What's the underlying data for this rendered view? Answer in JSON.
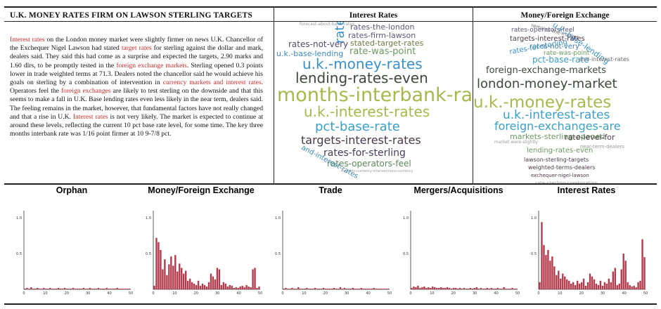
{
  "article": {
    "title": "U.K. MONEY RATES FIRM ON LAWSON STERLING TARGETS",
    "segments": [
      {
        "text": "Interest rates",
        "hl": true
      },
      {
        "text": " on the London money market were slightly firmer on news U.K. Chancellor of the Exchequer Nigel Lawson had stated ",
        "hl": false
      },
      {
        "text": "target rates",
        "hl": true
      },
      {
        "text": " for sterling against the dollar and mark, dealers said. They said this had come as a surprise and expected the targets, 2.90 marks and 1.60 dlrs, to be promptly tested in the ",
        "hl": false
      },
      {
        "text": "foreign exchange markets",
        "hl": true
      },
      {
        "text": ". Sterling opened 0.3 points lower in trade weighted terms at 71.3. Dealers noted the chancellor said he would achieve his goals on sterling by a combination of intervention in ",
        "hl": false
      },
      {
        "text": "currency markets and interest rates",
        "hl": true
      },
      {
        "text": ". Operators feel the ",
        "hl": false
      },
      {
        "text": "foreign exchanges",
        "hl": true
      },
      {
        "text": " are likely to test sterling on the downside and that this seems to make a fall in U.K. Base lending rates even less likely in the near term, dealers said. The feeling remains in the market, however, that fundamental factors have not really changed and that a rise in U.K. ",
        "hl": false
      },
      {
        "text": "Interest rates",
        "hl": true
      },
      {
        "text": " is not very likely. The market is expected to continue at around these levels, reflecting the current 10 pct base rate level, for some time. The key three months interbank rate was 1/16 point firmer at 10 9-7/8 pct.",
        "hl": false
      }
    ]
  },
  "clouds": [
    {
      "title": "Interest Rates",
      "words": [
        {
          "text": "forecast-about-bank-rates",
          "c": "#9a9a9a"
        },
        {
          "text": "rates-the-london",
          "c": "#5a5a7a"
        },
        {
          "text": "rates-firm-lawson",
          "c": "#5a5a7a"
        },
        {
          "text": "stated-target-rates",
          "c": "#6a7a40"
        },
        {
          "text": "rates-not-very",
          "c": "#5a4a6a"
        },
        {
          "text": "rate-was-point",
          "c": "#6a9a60"
        },
        {
          "text": "u.k.-base-lending",
          "c": "#3a8ab8"
        },
        {
          "text": "u.k.-money-rates",
          "c": "#3a90c8"
        },
        {
          "text": "rate",
          "c": "#3a90c8"
        },
        {
          "text": "lending-rates-even",
          "c": "#3a4a3a"
        },
        {
          "text": "months-interbank-rate",
          "c": "#a8b84a"
        },
        {
          "text": "u.k.-interest-rates",
          "c": "#a8b84a"
        },
        {
          "text": "pct-base-rate",
          "c": "#3aa0c8"
        },
        {
          "text": "targets-interest-rates",
          "c": "#4a3a4a"
        },
        {
          "text": "rates-for-sterling",
          "c": "#4a3a5a"
        },
        {
          "text": "rates-operators-feel",
          "c": "#5a8a5a"
        },
        {
          "text": "and-interest-rates",
          "c": "#3a8ab8"
        },
        {
          "text": "markets-currency-interventions-currency",
          "c": "#9a9a9a"
        }
      ]
    },
    {
      "title": "Money/Foreign Exchange",
      "words": [
        {
          "text": "remains-the-market",
          "c": "#6a6a6a"
        },
        {
          "text": "rates-operators-feel",
          "c": "#5a5a7a"
        },
        {
          "text": "u.k.-base-lending",
          "c": "#3a90c8"
        },
        {
          "text": "targets-interest-rates",
          "c": "#4a3a4a"
        },
        {
          "text": "rates-not-very",
          "c": "#3a7aa8"
        },
        {
          "text": "rates-for-sterling",
          "c": "#3a90c8"
        },
        {
          "text": "rate-was-point",
          "c": "#6a9a60"
        },
        {
          "text": "pct-base-rate",
          "c": "#3aa0c8"
        },
        {
          "text": "and-interest-rates",
          "c": "#6a6a6a"
        },
        {
          "text": "foreign-exchange-markets",
          "c": "#3a4a3a"
        },
        {
          "text": "london-money-market",
          "c": "#3a4a3a"
        },
        {
          "text": "u.k.-money-rates",
          "c": "#a8b84a"
        },
        {
          "text": "u.k.-interest-rates",
          "c": "#3aa0c8"
        },
        {
          "text": "foreign-exchanges-are",
          "c": "#3aa0c8"
        },
        {
          "text": "markets-sterling-opened",
          "c": "#6a9a60"
        },
        {
          "text": "rate-level-for",
          "c": "#4a3a4a"
        },
        {
          "text": "market-were-slightly",
          "c": "#9a9a9a"
        },
        {
          "text": "near-term-dealers",
          "c": "#9a9a9a"
        },
        {
          "text": "lending-rates-even",
          "c": "#6a9a60"
        },
        {
          "text": "lawson-sterling-targets",
          "c": "#4a3a4a"
        },
        {
          "text": "weighted-terms-dealers",
          "c": "#4a3a4a"
        },
        {
          "text": "exchequer-nigel-lawson",
          "c": "#4a3a4a"
        },
        {
          "text": "rate-sterling-combination",
          "c": "#9a9a9a"
        }
      ]
    }
  ],
  "chart_data": [
    {
      "type": "bar",
      "title": "Orphan",
      "x": [
        0,
        1,
        2,
        3,
        4,
        5,
        6,
        7,
        8,
        9,
        10,
        11,
        12,
        13,
        14,
        15,
        16,
        17,
        18,
        19,
        20,
        21,
        22,
        23,
        24,
        25,
        26,
        27,
        28,
        29,
        30,
        31,
        32,
        33,
        34,
        35,
        36,
        37,
        38,
        39,
        40,
        41,
        42,
        43,
        44,
        45,
        46,
        47,
        48,
        49,
        50
      ],
      "values": [
        0.01,
        0.02,
        0.01,
        0.03,
        0.01,
        0.01,
        0.02,
        0.01,
        0.01,
        0.02,
        0.01,
        0.01,
        0.02,
        0.01,
        0.01,
        0.01,
        0.02,
        0.01,
        0.01,
        0.02,
        0.01,
        0.01,
        0.01,
        0.02,
        0.01,
        0.01,
        0.01,
        0.01,
        0.02,
        0.01,
        0.01,
        0.02,
        0.01,
        0.01,
        0.01,
        0.02,
        0.01,
        0.01,
        0.01,
        0.02,
        0.01,
        0.01,
        0.01,
        0.01,
        0.02,
        0.01,
        0.01,
        0.01,
        0.01,
        0.01,
        0.01
      ],
      "ylim": [
        0,
        1.1
      ],
      "yticks": [
        "0.5",
        "1.0"
      ],
      "xticks": [
        "0",
        "10",
        "20",
        "30",
        "40",
        "50"
      ],
      "color": "#b33a4c"
    },
    {
      "type": "bar",
      "title": "Money/Foreign Exchange",
      "x": [
        0,
        1,
        2,
        3,
        4,
        5,
        6,
        7,
        8,
        9,
        10,
        11,
        12,
        13,
        14,
        15,
        16,
        17,
        18,
        19,
        20,
        21,
        22,
        23,
        24,
        25,
        26,
        27,
        28,
        29,
        30,
        31,
        32,
        33,
        34,
        35,
        36,
        37,
        38,
        39,
        40,
        41,
        42,
        43,
        44,
        45,
        46,
        47,
        48,
        49,
        50
      ],
      "values": [
        0.05,
        0.72,
        0.66,
        0.55,
        0.28,
        0.42,
        0.2,
        0.35,
        0.46,
        0.33,
        0.48,
        0.25,
        0.36,
        0.3,
        0.22,
        0.26,
        0.12,
        0.15,
        0.1,
        0.08,
        0.06,
        0.12,
        0.05,
        0.08,
        0.06,
        0.04,
        0.1,
        0.22,
        0.18,
        0.14,
        0.3,
        0.28,
        0.06,
        0.1,
        0.08,
        0.04,
        0.06,
        0.05,
        0.02,
        0.03,
        0.02,
        0.04,
        0.05,
        0.03,
        0.06,
        0.04,
        0.03,
        0.28,
        0.3,
        0.02,
        0.04
      ],
      "ylim": [
        0,
        1.1
      ],
      "yticks": [
        "0.5",
        "1.0"
      ],
      "xticks": [
        "0",
        "10",
        "20",
        "30",
        "40",
        "50"
      ],
      "color": "#b33a4c"
    },
    {
      "type": "bar",
      "title": "Trade",
      "x": [
        0,
        1,
        2,
        3,
        4,
        5,
        6,
        7,
        8,
        9,
        10,
        11,
        12,
        13,
        14,
        15,
        16,
        17,
        18,
        19,
        20,
        21,
        22,
        23,
        24,
        25,
        26,
        27,
        28,
        29,
        30,
        31,
        32,
        33,
        34,
        35,
        36,
        37,
        38,
        39,
        40,
        41,
        42,
        43,
        44,
        45,
        46,
        47,
        48,
        49,
        50
      ],
      "values": [
        0.01,
        0.02,
        0.01,
        0.01,
        0.02,
        0.01,
        0.01,
        0.03,
        0.01,
        0.01,
        0.01,
        0.02,
        0.01,
        0.01,
        0.01,
        0.02,
        0.01,
        0.01,
        0.01,
        0.02,
        0.01,
        0.01,
        0.01,
        0.01,
        0.02,
        0.01,
        0.01,
        0.03,
        0.01,
        0.02,
        0.01,
        0.01,
        0.01,
        0.02,
        0.01,
        0.01,
        0.01,
        0.02,
        0.01,
        0.01,
        0.01,
        0.01,
        0.01,
        0.02,
        0.01,
        0.01,
        0.01,
        0.01,
        0.01,
        0.01,
        0.01
      ],
      "ylim": [
        0,
        1.1
      ],
      "yticks": [
        "0.5",
        "1.0"
      ],
      "xticks": [
        "0",
        "10",
        "20",
        "30",
        "40",
        "50"
      ],
      "color": "#b33a4c"
    },
    {
      "type": "bar",
      "title": "Mergers/Acquisitions",
      "x": [
        0,
        1,
        2,
        3,
        4,
        5,
        6,
        7,
        8,
        9,
        10,
        11,
        12,
        13,
        14,
        15,
        16,
        17,
        18,
        19,
        20,
        21,
        22,
        23,
        24,
        25,
        26,
        27,
        28,
        29,
        30,
        31,
        32,
        33,
        34,
        35,
        36,
        37,
        38,
        39,
        40,
        41,
        42,
        43,
        44,
        45,
        46,
        47,
        48,
        49,
        50
      ],
      "values": [
        0.02,
        0.04,
        0.03,
        0.05,
        0.02,
        0.03,
        0.04,
        0.02,
        0.03,
        0.02,
        0.04,
        0.03,
        0.02,
        0.02,
        0.03,
        0.02,
        0.02,
        0.03,
        0.02,
        0.01,
        0.02,
        0.02,
        0.01,
        0.02,
        0.01,
        0.02,
        0.01,
        0.01,
        0.02,
        0.01,
        0.02,
        0.03,
        0.01,
        0.02,
        0.01,
        0.01,
        0.02,
        0.01,
        0.02,
        0.01,
        0.01,
        0.02,
        0.01,
        0.01,
        0.03,
        0.01,
        0.01,
        0.01,
        0.02,
        0.01,
        0.01
      ],
      "ylim": [
        0,
        1.1
      ],
      "yticks": [
        "0.5",
        "1.0"
      ],
      "xticks": [
        "0",
        "10",
        "20",
        "30",
        "40",
        "50"
      ],
      "color": "#b33a4c"
    },
    {
      "type": "bar",
      "title": "Interest Rates",
      "x": [
        0,
        1,
        2,
        3,
        4,
        5,
        6,
        7,
        8,
        9,
        10,
        11,
        12,
        13,
        14,
        15,
        16,
        17,
        18,
        19,
        20,
        21,
        22,
        23,
        24,
        25,
        26,
        27,
        28,
        29,
        30,
        31,
        32,
        33,
        34,
        35,
        36,
        37,
        38,
        39,
        40,
        41,
        42,
        43,
        44,
        45,
        46,
        47,
        48,
        49,
        50
      ],
      "values": [
        0.1,
        0.94,
        0.62,
        0.48,
        0.55,
        0.4,
        0.46,
        0.32,
        0.2,
        0.26,
        0.15,
        0.22,
        0.18,
        0.14,
        0.12,
        0.08,
        0.1,
        0.06,
        0.12,
        0.08,
        0.1,
        0.15,
        0.05,
        0.1,
        0.22,
        0.18,
        0.14,
        0.08,
        0.06,
        0.12,
        0.05,
        0.1,
        0.08,
        0.15,
        0.1,
        0.25,
        0.3,
        0.06,
        0.08,
        0.28,
        0.5,
        0.4,
        0.1,
        0.06,
        0.04,
        0.05,
        0.03,
        0.1,
        0.12,
        0.7,
        0.45
      ],
      "ylim": [
        0,
        1.1
      ],
      "yticks": [
        "0.5",
        "1.0"
      ],
      "xticks": [
        "0",
        "10",
        "20",
        "30",
        "40",
        "50"
      ],
      "color": "#b33a4c"
    }
  ]
}
